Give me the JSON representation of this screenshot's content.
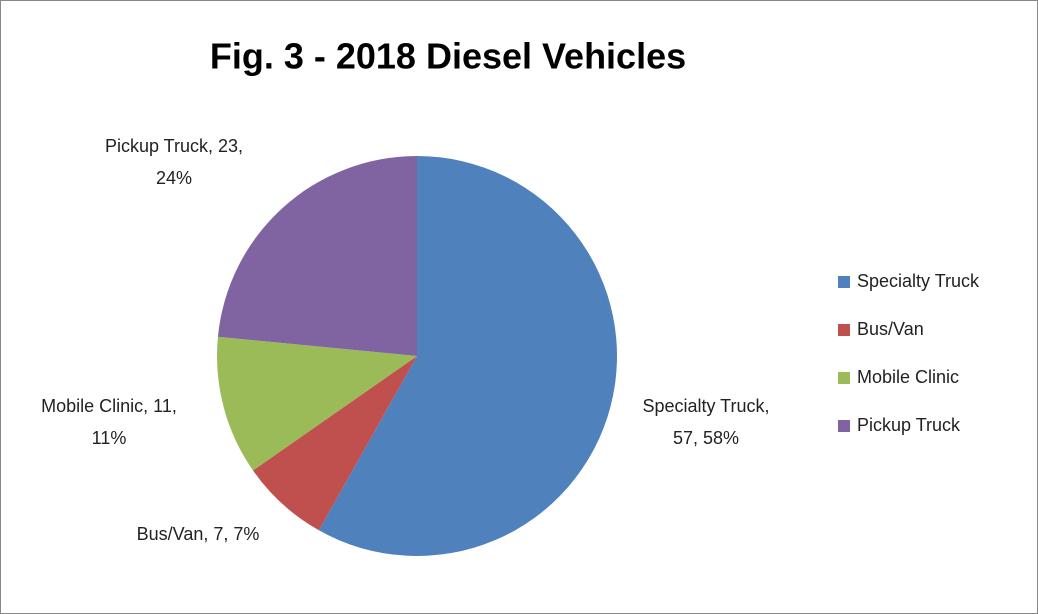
{
  "chart_data": {
    "type": "pie",
    "title": "Fig. 3 - 2018 Diesel Vehicles",
    "categories": [
      "Specialty Truck",
      "Bus/Van",
      "Mobile Clinic",
      "Pickup Truck"
    ],
    "values": [
      57,
      7,
      11,
      23
    ],
    "value_labels": [
      "Specialty Truck, 57, 58%",
      "Bus/Van, 7, 7%",
      "Mobile Clinic, 11, 11%",
      "Pickup Truck, 23, 24%"
    ],
    "colors": [
      "#4f81bd",
      "#c0504d",
      "#9bbb59",
      "#8064a2"
    ],
    "legend": "right"
  }
}
